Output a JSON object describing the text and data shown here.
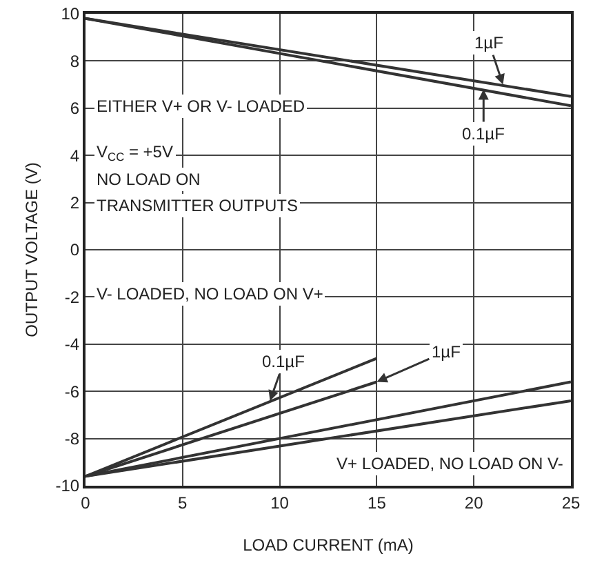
{
  "chart_data": {
    "type": "line",
    "xlabel": "LOAD CURRENT (mA)",
    "ylabel": "OUTPUT VOLTAGE (V)",
    "series": [
      {
        "color": "#333333",
        "x": [
          0,
          25
        ],
        "values": [
          9.8,
          6.5
        ]
      },
      {
        "color": "#333333",
        "x": [
          0,
          25
        ],
        "values": [
          9.8,
          6.1
        ]
      },
      {
        "color": "#333333",
        "x": [
          0,
          15
        ],
        "values": [
          -9.6,
          -4.6
        ]
      },
      {
        "color": "#333333",
        "x": [
          0,
          15
        ],
        "values": [
          -9.6,
          -5.6
        ]
      },
      {
        "color": "#333333",
        "x": [
          0,
          25
        ],
        "values": [
          -9.6,
          -5.6
        ]
      },
      {
        "color": "#333333",
        "x": [
          0,
          25
        ],
        "values": [
          -9.6,
          -6.4
        ]
      }
    ],
    "xlim": [
      0,
      25
    ],
    "xticks": [
      0,
      5,
      10,
      15,
      20,
      25
    ],
    "ylim": [
      -10,
      10
    ],
    "yticks": [
      -10,
      -8,
      -6,
      -4,
      -2,
      0,
      2,
      4,
      6,
      8,
      10
    ],
    "grid": true,
    "marker": "none",
    "line_style": "solid",
    "annotations": [
      {
        "text": "1µF",
        "x": 21.5,
        "y": 7
      },
      {
        "text": "0.1µF",
        "x": 20.5,
        "y": 6.8
      },
      {
        "text": "0.1µF",
        "x": 9.5,
        "y": -6.4
      },
      {
        "text": "1µF",
        "x": 15,
        "y": -5.6
      },
      "EITHER V+ OR V- LOADED",
      "V$_{CC}$ = +5V",
      "NO LOAD ON",
      "TRANSMITTER OUTPUTS",
      "V- LOADED, NO LOAD ON V+",
      "V+ LOADED, NO LOAD ON V-"
    ]
  }
}
